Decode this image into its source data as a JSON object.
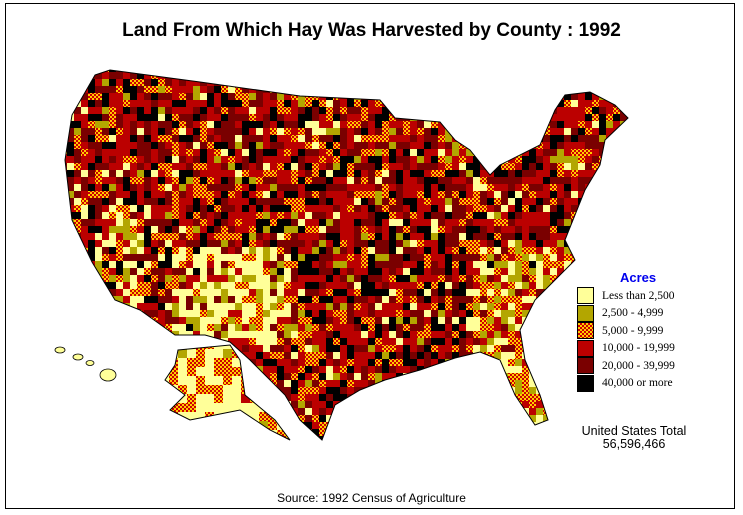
{
  "title": "Land From Which Hay Was Harvested by County :  1992",
  "legend": {
    "title": "Acres",
    "classes": [
      {
        "label": "Less than 2,500",
        "color": "#ffff99"
      },
      {
        "label": "2,500 - 4,999",
        "color": "#b3a600"
      },
      {
        "label": "5,000 - 9,999",
        "color": "checker #cc0000/#ffcc00"
      },
      {
        "label": "10,000 - 19,999",
        "color": "#bb0000"
      },
      {
        "label": "20,000 - 39,999",
        "color": "#7a0000"
      },
      {
        "label": "40,000 or more",
        "color": "#000000"
      }
    ]
  },
  "total": {
    "label": "United States Total",
    "value": "56,596,466"
  },
  "source": "Source:  1992 Census of Agriculture"
}
